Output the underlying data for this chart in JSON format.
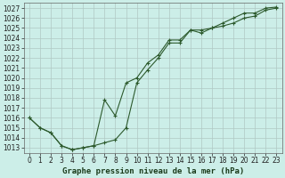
{
  "title": "Graphe pression niveau de la mer (hPa)",
  "bg_color": "#cceee8",
  "grid_color": "#b0c8c4",
  "line_color": "#2d5a2d",
  "ylim": [
    1012.5,
    1027.5
  ],
  "xlim": [
    -0.5,
    23.5
  ],
  "yticks": [
    1013,
    1014,
    1015,
    1016,
    1017,
    1018,
    1019,
    1020,
    1021,
    1022,
    1023,
    1024,
    1025,
    1026,
    1027
  ],
  "xticks": [
    0,
    1,
    2,
    3,
    4,
    5,
    6,
    7,
    8,
    9,
    10,
    11,
    12,
    13,
    14,
    15,
    16,
    17,
    18,
    19,
    20,
    21,
    22,
    23
  ],
  "line1_x": [
    0,
    1,
    2,
    3,
    4,
    5,
    6,
    7,
    8,
    9,
    10,
    11,
    12,
    13,
    14,
    15,
    16,
    17,
    18,
    19,
    20,
    21,
    22,
    23
  ],
  "line1_y": [
    1016.0,
    1015.0,
    1014.5,
    1013.2,
    1012.8,
    1013.0,
    1013.2,
    1013.5,
    1013.8,
    1015.0,
    1019.5,
    1020.8,
    1022.0,
    1023.5,
    1023.5,
    1024.8,
    1024.8,
    1025.0,
    1025.2,
    1025.5,
    1026.0,
    1026.2,
    1026.8,
    1027.0
  ],
  "line2_x": [
    0,
    1,
    2,
    3,
    4,
    5,
    6,
    7,
    8,
    9,
    10,
    11,
    12,
    13,
    14,
    15,
    16,
    17,
    18,
    19,
    20,
    21,
    22,
    23
  ],
  "line2_y": [
    1016.0,
    1015.0,
    1014.5,
    1013.2,
    1012.8,
    1013.0,
    1013.2,
    1017.8,
    1016.2,
    1019.5,
    1020.0,
    1021.5,
    1022.3,
    1023.8,
    1023.8,
    1024.8,
    1024.5,
    1025.0,
    1025.5,
    1026.0,
    1026.5,
    1026.5,
    1027.0,
    1027.1
  ],
  "tick_fontsize": 5.5,
  "title_fontsize": 6.5,
  "marker": "+"
}
